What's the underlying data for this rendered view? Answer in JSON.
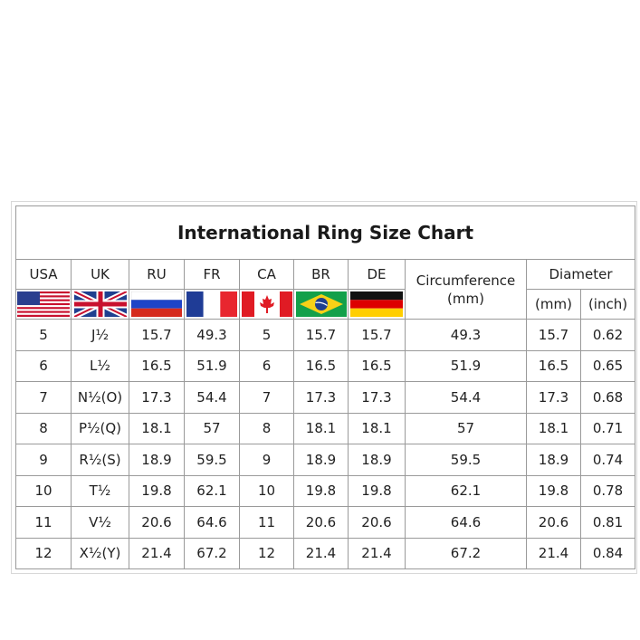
{
  "title": "International Ring Size Chart",
  "headers": [
    "USA",
    "UK",
    "RU",
    "FR",
    "CA",
    "BR",
    "DE",
    "Circumference\n(mm)",
    "Diameter"
  ],
  "diameter_units": [
    "(mm)",
    "(inch)"
  ],
  "rows": [
    [
      "5",
      "J½",
      "15.7",
      "49.3",
      "5",
      "15.7",
      "15.7",
      "49.3",
      "15.7",
      "0.62"
    ],
    [
      "6",
      "L½",
      "16.5",
      "51.9",
      "6",
      "16.5",
      "16.5",
      "51.9",
      "16.5",
      "0.65"
    ],
    [
      "7",
      "N½(O)",
      "17.3",
      "54.4",
      "7",
      "17.3",
      "17.3",
      "54.4",
      "17.3",
      "0.68"
    ],
    [
      "8",
      "P½(Q)",
      "18.1",
      "57",
      "8",
      "18.1",
      "18.1",
      "57",
      "18.1",
      "0.71"
    ],
    [
      "9",
      "R½(S)",
      "18.9",
      "59.5",
      "9",
      "18.9",
      "18.9",
      "59.5",
      "18.9",
      "0.74"
    ],
    [
      "10",
      "T½",
      "19.8",
      "62.1",
      "10",
      "19.8",
      "19.8",
      "62.1",
      "19.8",
      "0.78"
    ],
    [
      "11",
      "V½",
      "20.6",
      "64.6",
      "11",
      "20.6",
      "20.6",
      "64.6",
      "20.6",
      "0.81"
    ],
    [
      "12",
      "X½(Y)",
      "21.4",
      "67.2",
      "12",
      "21.4",
      "21.4",
      "67.2",
      "21.4",
      "0.84"
    ]
  ]
}
